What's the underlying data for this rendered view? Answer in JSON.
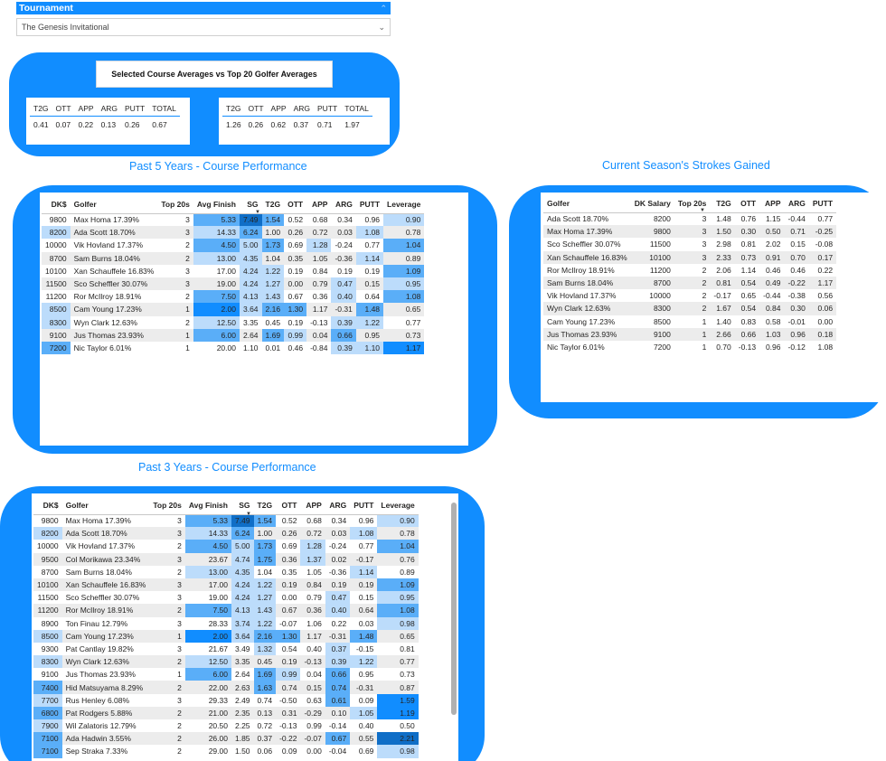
{
  "slicer": {
    "label": "Tournament",
    "value": "The Genesis Invitational"
  },
  "averages": {
    "title": "Selected Course Averages vs Top 20 Golfer Averages",
    "headers": [
      "T2G",
      "OTT",
      "APP",
      "ARG",
      "PUTT",
      "TOTAL"
    ],
    "course": [
      "0.41",
      "0.07",
      "0.22",
      "0.13",
      "0.26",
      "0.67"
    ],
    "top20": [
      "1.26",
      "0.26",
      "0.62",
      "0.37",
      "0.71",
      "1.97"
    ]
  },
  "past5": {
    "title": "Past 5 Years - Course Performance",
    "headers": [
      "DK$",
      "Golfer",
      "Top 20s",
      "Avg Finish",
      "SG",
      "T2G",
      "OTT",
      "APP",
      "ARG",
      "PUTT",
      "Leverage"
    ],
    "rows": [
      [
        "9800",
        "Max Homa 17.39%",
        "3",
        "5.33",
        "7.49",
        "1.54",
        "0.52",
        "0.68",
        "0.34",
        "0.96",
        "0.90"
      ],
      [
        "8200",
        "Ada Scott 18.70%",
        "3",
        "14.33",
        "6.24",
        "1.00",
        "0.26",
        "0.72",
        "0.03",
        "1.08",
        "0.78"
      ],
      [
        "10000",
        "Vik Hovland 17.37%",
        "2",
        "4.50",
        "5.00",
        "1.73",
        "0.69",
        "1.28",
        "-0.24",
        "0.77",
        "1.04"
      ],
      [
        "8700",
        "Sam Burns 18.04%",
        "2",
        "13.00",
        "4.35",
        "1.04",
        "0.35",
        "1.05",
        "-0.36",
        "1.14",
        "0.89"
      ],
      [
        "10100",
        "Xan Schauffele 16.83%",
        "3",
        "17.00",
        "4.24",
        "1.22",
        "0.19",
        "0.84",
        "0.19",
        "0.19",
        "1.09"
      ],
      [
        "11500",
        "Sco Scheffler 30.07%",
        "3",
        "19.00",
        "4.24",
        "1.27",
        "0.00",
        "0.79",
        "0.47",
        "0.15",
        "0.95"
      ],
      [
        "11200",
        "Ror McIlroy 18.91%",
        "2",
        "7.50",
        "4.13",
        "1.43",
        "0.67",
        "0.36",
        "0.40",
        "0.64",
        "1.08"
      ],
      [
        "8500",
        "Cam Young 17.23%",
        "1",
        "2.00",
        "3.64",
        "2.16",
        "1.30",
        "1.17",
        "-0.31",
        "1.48",
        "0.65"
      ],
      [
        "8300",
        "Wyn Clark 12.63%",
        "2",
        "12.50",
        "3.35",
        "0.45",
        "0.19",
        "-0.13",
        "0.39",
        "1.22",
        "0.77"
      ],
      [
        "9100",
        "Jus Thomas 23.93%",
        "1",
        "6.00",
        "2.64",
        "1.69",
        "0.99",
        "0.04",
        "0.66",
        "0.95",
        "0.73"
      ],
      [
        "7200",
        "Nic Taylor 6.01%",
        "1",
        "20.00",
        "1.10",
        "0.01",
        "0.46",
        "-0.84",
        "0.39",
        "1.10",
        "1.17"
      ]
    ]
  },
  "season": {
    "title": "Current Season's Strokes Gained",
    "headers": [
      "Golfer",
      "DK Salary",
      "Top 20s",
      "T2G",
      "OTT",
      "APP",
      "ARG",
      "PUTT"
    ],
    "rows": [
      [
        "Ada Scott 18.70%",
        "8200",
        "3",
        "1.48",
        "0.76",
        "1.15",
        "-0.44",
        "0.77"
      ],
      [
        "Max Homa 17.39%",
        "9800",
        "3",
        "1.50",
        "0.30",
        "0.50",
        "0.71",
        "-0.25"
      ],
      [
        "Sco Scheffler 30.07%",
        "11500",
        "3",
        "2.98",
        "0.81",
        "2.02",
        "0.15",
        "-0.08"
      ],
      [
        "Xan Schauffele 16.83%",
        "10100",
        "3",
        "2.33",
        "0.73",
        "0.91",
        "0.70",
        "0.17"
      ],
      [
        "Ror McIlroy 18.91%",
        "11200",
        "2",
        "2.06",
        "1.14",
        "0.46",
        "0.46",
        "0.22"
      ],
      [
        "Sam Burns 18.04%",
        "8700",
        "2",
        "0.81",
        "0.54",
        "0.49",
        "-0.22",
        "1.17"
      ],
      [
        "Vik Hovland 17.37%",
        "10000",
        "2",
        "-0.17",
        "0.65",
        "-0.44",
        "-0.38",
        "0.56"
      ],
      [
        "Wyn Clark 12.63%",
        "8300",
        "2",
        "1.67",
        "0.54",
        "0.84",
        "0.30",
        "0.06"
      ],
      [
        "Cam Young 17.23%",
        "8500",
        "1",
        "1.40",
        "0.83",
        "0.58",
        "-0.01",
        "0.00"
      ],
      [
        "Jus Thomas 23.93%",
        "9100",
        "1",
        "2.66",
        "0.66",
        "1.03",
        "0.96",
        "0.18"
      ],
      [
        "Nic Taylor 6.01%",
        "7200",
        "1",
        "0.70",
        "-0.13",
        "0.96",
        "-0.12",
        "1.08"
      ]
    ]
  },
  "past3": {
    "title": "Past 3 Years - Course Performance",
    "headers": [
      "DK$",
      "Golfer",
      "Top 20s",
      "Avg Finish",
      "SG",
      "T2G",
      "OTT",
      "APP",
      "ARG",
      "PUTT",
      "Leverage"
    ],
    "rows": [
      [
        "9800",
        "Max Homa 17.39%",
        "3",
        "5.33",
        "7.49",
        "1.54",
        "0.52",
        "0.68",
        "0.34",
        "0.96",
        "0.90"
      ],
      [
        "8200",
        "Ada Scott 18.70%",
        "3",
        "14.33",
        "6.24",
        "1.00",
        "0.26",
        "0.72",
        "0.03",
        "1.08",
        "0.78"
      ],
      [
        "10000",
        "Vik Hovland 17.37%",
        "2",
        "4.50",
        "5.00",
        "1.73",
        "0.69",
        "1.28",
        "-0.24",
        "0.77",
        "1.04"
      ],
      [
        "9500",
        "Col Morikawa 23.34%",
        "3",
        "23.67",
        "4.74",
        "1.75",
        "0.36",
        "1.37",
        "0.02",
        "-0.17",
        "0.76"
      ],
      [
        "8700",
        "Sam Burns 18.04%",
        "2",
        "13.00",
        "4.35",
        "1.04",
        "0.35",
        "1.05",
        "-0.36",
        "1.14",
        "0.89"
      ],
      [
        "10100",
        "Xan Schauffele 16.83%",
        "3",
        "17.00",
        "4.24",
        "1.22",
        "0.19",
        "0.84",
        "0.19",
        "0.19",
        "1.09"
      ],
      [
        "11500",
        "Sco Scheffler 30.07%",
        "3",
        "19.00",
        "4.24",
        "1.27",
        "0.00",
        "0.79",
        "0.47",
        "0.15",
        "0.95"
      ],
      [
        "11200",
        "Ror McIlroy 18.91%",
        "2",
        "7.50",
        "4.13",
        "1.43",
        "0.67",
        "0.36",
        "0.40",
        "0.64",
        "1.08"
      ],
      [
        "8900",
        "Ton Finau 12.79%",
        "3",
        "28.33",
        "3.74",
        "1.22",
        "-0.07",
        "1.06",
        "0.22",
        "0.03",
        "0.98"
      ],
      [
        "8500",
        "Cam Young 17.23%",
        "1",
        "2.00",
        "3.64",
        "2.16",
        "1.30",
        "1.17",
        "-0.31",
        "1.48",
        "0.65"
      ],
      [
        "9300",
        "Pat Cantlay 19.82%",
        "3",
        "21.67",
        "3.49",
        "1.32",
        "0.54",
        "0.40",
        "0.37",
        "-0.15",
        "0.81"
      ],
      [
        "8300",
        "Wyn Clark 12.63%",
        "2",
        "12.50",
        "3.35",
        "0.45",
        "0.19",
        "-0.13",
        "0.39",
        "1.22",
        "0.77"
      ],
      [
        "9100",
        "Jus Thomas 23.93%",
        "1",
        "6.00",
        "2.64",
        "1.69",
        "0.99",
        "0.04",
        "0.66",
        "0.95",
        "0.73"
      ],
      [
        "7400",
        "Hid Matsuyama 8.29%",
        "2",
        "22.00",
        "2.63",
        "1.63",
        "0.74",
        "0.15",
        "0.74",
        "-0.31",
        "0.87"
      ],
      [
        "7700",
        "Rus Henley 6.08%",
        "3",
        "29.33",
        "2.49",
        "0.74",
        "-0.50",
        "0.63",
        "0.61",
        "0.09",
        "1.59"
      ],
      [
        "6800",
        "Pat Rodgers 5.88%",
        "2",
        "21.00",
        "2.35",
        "0.13",
        "0.31",
        "-0.29",
        "0.10",
        "1.05",
        "1.19"
      ],
      [
        "7900",
        "Wil Zalatoris 12.79%",
        "2",
        "20.50",
        "2.25",
        "0.72",
        "-0.13",
        "0.99",
        "-0.14",
        "0.40",
        "0.50"
      ],
      [
        "7100",
        "Ada Hadwin 3.55%",
        "2",
        "26.00",
        "1.85",
        "0.37",
        "-0.22",
        "-0.07",
        "0.67",
        "0.55",
        "2.21"
      ],
      [
        "7100",
        "Sep Straka 7.33%",
        "2",
        "29.00",
        "1.50",
        "0.06",
        "0.09",
        "0.00",
        "-0.04",
        "0.69",
        "0.98"
      ]
    ]
  }
}
